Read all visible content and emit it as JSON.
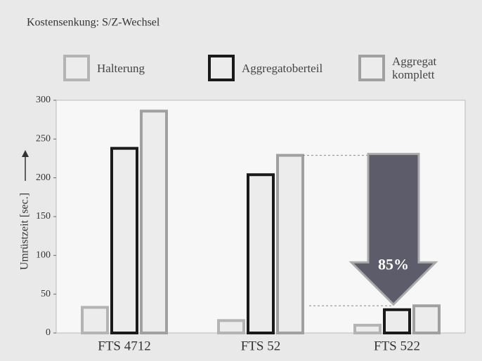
{
  "chart_data": {
    "type": "bar",
    "title": "Kostensenkung: S/Z-Wechsel",
    "y_label": "Umrüstzeit [sec.]",
    "categories": [
      "FTS 4712",
      "FTS 52",
      "FTS 522"
    ],
    "series": [
      {
        "name": "Halterung",
        "color": "#b4b4b4",
        "values": [
          33,
          16,
          10
        ]
      },
      {
        "name": "Aggregatoberteil",
        "color": "#1a1a1a",
        "values": [
          238,
          204,
          30
        ]
      },
      {
        "name": "Aggregat komplett",
        "color": "#a0a0a0",
        "values": [
          286,
          229,
          35
        ]
      }
    ],
    "ylim": [
      0,
      300
    ],
    "yticks": [
      0,
      50,
      100,
      150,
      200,
      250,
      300
    ],
    "grid": false,
    "annotation": "85%"
  }
}
